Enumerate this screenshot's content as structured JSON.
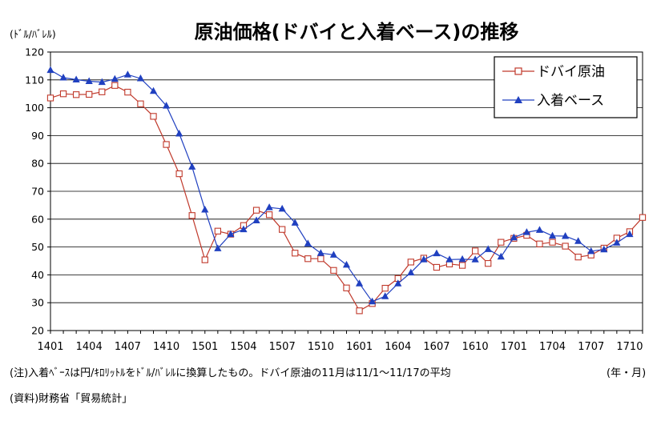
{
  "chart_data": {
    "type": "line",
    "title": "原油価格(ドバイと入着ベース)の推移",
    "ylabel": "(ﾄﾞﾙ/ﾊﾞﾚﾙ)",
    "xlabel": "(年・月)",
    "ylim": [
      20,
      120
    ],
    "yticks": [
      20,
      30,
      40,
      50,
      60,
      70,
      80,
      90,
      100,
      110,
      120
    ],
    "grid": true,
    "legend": "top-right",
    "x_tick_labels": [
      "1401",
      "1404",
      "1407",
      "1410",
      "1501",
      "1504",
      "1507",
      "1510",
      "1601",
      "1604",
      "1607",
      "1610",
      "1701",
      "1704",
      "1707",
      "1710"
    ],
    "series": [
      {
        "name": "ドバイ原油",
        "color": "#c0392b",
        "marker": "square",
        "values": [
          103.5,
          105,
          104.7,
          104.8,
          105.7,
          108,
          105.6,
          101.4,
          96.9,
          86.8,
          76.3,
          61.3,
          45.4,
          55.7,
          54.6,
          57.7,
          63.2,
          61.6,
          56.3,
          47.8,
          45.8,
          45.8,
          41.6,
          35.3,
          27.1,
          29.7,
          35.2,
          38.7,
          44.6,
          46,
          42.7,
          43.9,
          43.4,
          48.6,
          44.1,
          51.7,
          53.1,
          54.2,
          51.1,
          51.7,
          50.3,
          46.4,
          47.1,
          49.6,
          53.2,
          55.5,
          60.6
        ],
        "visible_points": 47
      },
      {
        "name": "入着ベース",
        "color": "#2040c0",
        "marker": "triangle",
        "values": [
          113.5,
          110.8,
          110.1,
          109.5,
          109.2,
          110.3,
          111.9,
          110.5,
          106,
          100.7,
          90.7,
          78.8,
          63.4,
          49.5,
          54.6,
          56.3,
          59.5,
          64.2,
          63.7,
          58.7,
          51.2,
          47.8,
          47.2,
          43.6,
          36.9,
          30.4,
          32.3,
          36.9,
          40.8,
          45.5,
          47.7,
          45.5,
          45.6,
          45.5,
          49.2,
          46.5,
          53.4,
          55.3,
          56.1,
          54,
          53.9,
          52.1,
          48.5,
          49.1,
          51.5,
          54.6
        ]
      }
    ]
  },
  "footnotes": {
    "note": "(注)入着ﾍﾞｰｽは円/ｷﾛﾘｯﾄﾙをﾄﾞﾙ/ﾊﾞﾚﾙに換算したもの。ドバイ原油の11月は11/1～11/17の平均",
    "source": "(資料)財務省「貿易統計」"
  }
}
